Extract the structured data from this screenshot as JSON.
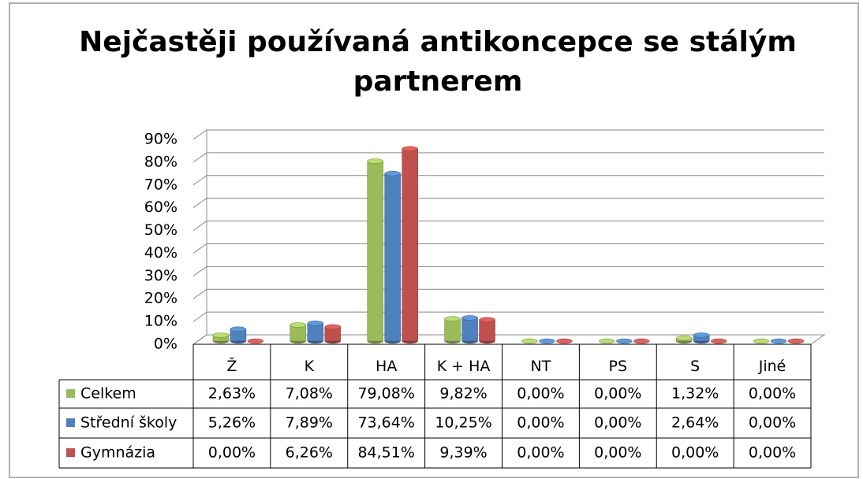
{
  "chart_data": {
    "type": "bar",
    "title": "Nejčastěji používaná antikoncepce se stálým partnerem",
    "categories": [
      "Ž",
      "K",
      "HA",
      "K + HA",
      "NT",
      "PS",
      "S",
      "Jiné"
    ],
    "series": [
      {
        "name": "Celkem",
        "color": "#9bbb59",
        "values": [
          2.63,
          7.08,
          79.08,
          9.82,
          0,
          0,
          1.32,
          0
        ],
        "value_labels": [
          "2,63%",
          "7,08%",
          "79,08%",
          "9,82%",
          "0,00%",
          "0,00%",
          "1,32%",
          "0,00%"
        ]
      },
      {
        "name": "Střední školy",
        "color": "#4f81bd",
        "values": [
          5.26,
          7.89,
          73.64,
          10.25,
          0,
          0,
          2.64,
          0
        ],
        "value_labels": [
          "5,26%",
          "7,89%",
          "73,64%",
          "10,25%",
          "0,00%",
          "0,00%",
          "2,64%",
          "0,00%"
        ]
      },
      {
        "name": "Gymnázia",
        "color": "#c0504d",
        "values": [
          0,
          6.26,
          84.51,
          9.39,
          0,
          0,
          0,
          0
        ],
        "value_labels": [
          "0,00%",
          "6,26%",
          "84,51%",
          "9,39%",
          "0,00%",
          "0,00%",
          "0,00%",
          "0,00%"
        ]
      }
    ],
    "ylim": [
      0,
      90
    ],
    "yticks": [
      {
        "value": 0,
        "label": "0%"
      },
      {
        "value": 10,
        "label": "10%"
      },
      {
        "value": 20,
        "label": "20%"
      },
      {
        "value": 30,
        "label": "30%"
      },
      {
        "value": 40,
        "label": "40%"
      },
      {
        "value": 50,
        "label": "50%"
      },
      {
        "value": 60,
        "label": "60%"
      },
      {
        "value": 70,
        "label": "70%"
      },
      {
        "value": 80,
        "label": "80%"
      },
      {
        "value": 90,
        "label": "90%"
      }
    ],
    "grid": true
  }
}
